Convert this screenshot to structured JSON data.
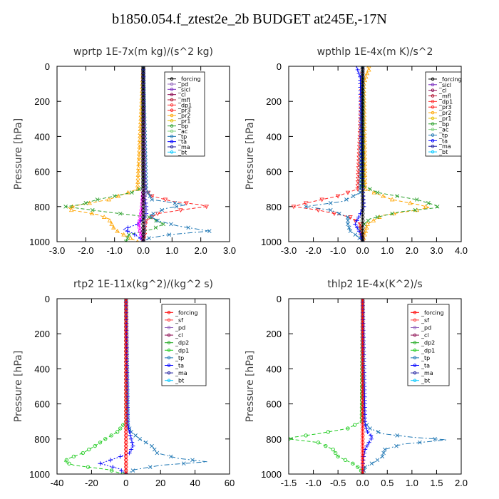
{
  "figure_title": "b1850.054.f_ztest2e_2b  BUDGET at245E,-17N",
  "chart_data": [
    {
      "type": "line",
      "title": "wprtp   1E-7x(m kg)/(s^2 kg)",
      "ylabel": "Pressure [hPa]",
      "xlim": [
        -3.0,
        3.0
      ],
      "ylim": [
        1000,
        0
      ],
      "xticks": [
        "-3.0",
        "-2.0",
        "-1.0",
        "0.0",
        "1.0",
        "2.0",
        "3.0"
      ],
      "yticks": [
        "0",
        "200",
        "400",
        "600",
        "800",
        "1000"
      ],
      "legend_entries": [
        "_forcing",
        "_pd",
        "_sicl",
        "_cl",
        "_mfl",
        "_dp1",
        "_pr3",
        "_pr2",
        "_pr1",
        "_bp",
        "_ac",
        "_tp",
        "_ta",
        "_ma",
        "_bt"
      ],
      "series": [
        {
          "name": "_forcing",
          "color": "#000000",
          "marker": "o",
          "dash": "solid",
          "p": [
            0,
            50,
            100,
            200,
            300,
            400,
            500,
            600,
            700,
            800,
            900,
            1000
          ],
          "x": [
            0,
            0,
            0,
            0,
            0,
            0,
            0,
            0,
            0,
            0,
            0,
            0
          ]
        },
        {
          "name": "_pr3",
          "color": "#ff2020",
          "marker": "v",
          "dash": "dashed",
          "p": [
            0,
            600,
            700,
            740,
            770,
            790,
            800,
            815,
            840,
            880,
            920,
            960,
            1000
          ],
          "x": [
            0,
            0,
            0.05,
            0.3,
            1.0,
            2.0,
            2.2,
            1.5,
            0.5,
            0.1,
            0.05,
            0.05,
            0
          ]
        },
        {
          "name": "_pr2",
          "color": "#ffa500",
          "marker": "^",
          "dash": "dashed",
          "p": [
            0,
            700,
            760,
            790,
            805,
            820,
            845,
            870,
            900,
            930,
            950,
            975,
            1000
          ],
          "x": [
            0,
            -0.2,
            -1.2,
            -2.2,
            -2.6,
            -2.5,
            -1.6,
            -1.2,
            -1.1,
            -1.0,
            -0.8,
            -0.5,
            -0.2
          ]
        },
        {
          "name": "_ac",
          "color": "#2ca02c",
          "marker": "x",
          "dash": "dashed",
          "p": [
            0,
            690,
            720,
            760,
            790,
            800,
            830,
            860,
            900,
            930,
            960,
            1000
          ],
          "x": [
            0,
            0,
            -0.4,
            -1.6,
            -2.2,
            -2.7,
            -1.3,
            0.2,
            0.7,
            0.3,
            -0.5,
            -0.6
          ]
        },
        {
          "name": "_tp",
          "color": "#1f77b4",
          "marker": "x",
          "dash": "dashdot",
          "p": [
            0,
            700,
            760,
            790,
            810,
            850,
            880,
            910,
            940,
            960,
            980,
            1000
          ],
          "x": [
            0,
            0.1,
            0.3,
            1.5,
            0.8,
            0.2,
            0.5,
            1.2,
            2.3,
            0.9,
            0.2,
            0
          ]
        },
        {
          "name": "_ta",
          "color": "#0000ff",
          "marker": "+",
          "dash": "dotted",
          "p": [
            0,
            750,
            800,
            850,
            900,
            930,
            950,
            980,
            1000
          ],
          "x": [
            0,
            0.05,
            0.1,
            0.1,
            -0.2,
            -0.7,
            -0.4,
            -0.1,
            0
          ]
        },
        {
          "name": "_dp1",
          "color": "#ff00ff",
          "marker": "o",
          "dash": "solid",
          "p": [
            0,
            700,
            800,
            860,
            900,
            950,
            1000
          ],
          "x": [
            0,
            0,
            -0.05,
            -0.1,
            -0.15,
            -0.1,
            0
          ]
        },
        {
          "name": "_pd",
          "color": "#9467bd",
          "marker": "o",
          "dash": "solid",
          "p": [
            0,
            800,
            900,
            1000
          ],
          "x": [
            0,
            0.05,
            0.05,
            0
          ]
        }
      ]
    },
    {
      "type": "line",
      "title": "wpthlp   1E-4x(m K)/s^2",
      "ylabel": "Pressure [hPa]",
      "xlim": [
        -3.0,
        4.0
      ],
      "ylim": [
        1000,
        0
      ],
      "xticks": [
        "-3.0",
        "-2.0",
        "-1.0",
        "0.0",
        "1.0",
        "2.0",
        "3.0",
        "4.0"
      ],
      "yticks": [
        "0",
        "200",
        "400",
        "600",
        "800",
        "1000"
      ],
      "legend_entries": [
        "_forcing",
        "_sicl",
        "_cl",
        "_mfl",
        "_dp1",
        "_pr3",
        "_pr2",
        "_pr1",
        "_bp",
        "_ac",
        "_tp",
        "_ta",
        "_ma",
        "_bt"
      ],
      "series": [
        {
          "name": "_forcing",
          "color": "#000000",
          "marker": "o",
          "dash": "solid",
          "p": [
            0,
            50,
            100,
            200,
            300,
            400,
            500,
            600,
            700,
            800,
            900,
            1000
          ],
          "x": [
            0,
            0,
            0,
            0,
            0,
            0,
            0,
            0,
            0,
            0,
            0,
            0
          ]
        },
        {
          "name": "_pr2",
          "color": "#ffa500",
          "marker": "^",
          "dash": "dashed",
          "p": [
            0,
            20,
            50,
            100,
            700,
            760,
            790,
            805,
            820,
            850,
            900,
            950,
            1000
          ],
          "x": [
            0.25,
            0.25,
            0.15,
            0.05,
            0.1,
            1.2,
            2.3,
            2.7,
            2.2,
            0.8,
            0.2,
            0.1,
            0
          ]
        },
        {
          "name": "_ac",
          "color": "#2ca02c",
          "marker": "x",
          "dash": "dashed",
          "p": [
            0,
            680,
            720,
            760,
            790,
            805,
            830,
            870,
            920,
            1000
          ],
          "x": [
            0,
            0,
            0.6,
            2.2,
            2.9,
            3.1,
            1.5,
            0.3,
            -0.1,
            0
          ]
        },
        {
          "name": "_pr3",
          "color": "#ff2020",
          "marker": "v",
          "dash": "dashed",
          "p": [
            0,
            700,
            740,
            780,
            800,
            820,
            860,
            900,
            1000
          ],
          "x": [
            0,
            -0.2,
            -1.0,
            -2.3,
            -2.8,
            -1.8,
            -0.5,
            -0.1,
            0
          ]
        },
        {
          "name": "_tp",
          "color": "#1f77b4",
          "marker": "x",
          "dash": "dashdot",
          "p": [
            0,
            720,
            770,
            800,
            820,
            860,
            900,
            940,
            970,
            1000
          ],
          "x": [
            0,
            -0.1,
            -0.8,
            -2.3,
            -1.3,
            -0.6,
            -0.6,
            -0.5,
            -0.2,
            0
          ]
        },
        {
          "name": "_ta",
          "color": "#0000ff",
          "marker": "+",
          "dash": "dotted",
          "p": [
            0,
            60,
            700,
            800,
            900,
            950,
            1000
          ],
          "x": [
            -0.25,
            -0.1,
            0,
            0.05,
            -0.3,
            -0.1,
            0
          ]
        }
      ]
    },
    {
      "type": "line",
      "title": "rtp2   1E-11x(kg^2)/(kg^2 s)",
      "ylabel": "Pressure [hPa]",
      "xlim": [
        -40,
        60
      ],
      "ylim": [
        1000,
        0
      ],
      "xticks": [
        "-40",
        "-20",
        "0",
        "20",
        "40",
        "60"
      ],
      "yticks": [
        "0",
        "200",
        "400",
        "600",
        "800",
        "1000"
      ],
      "legend_entries": [
        "_forcing",
        "_sf",
        "_pd",
        "_cl",
        "_dp2",
        "_dp1",
        "_tp",
        "_ta",
        "_ma",
        "_bt"
      ],
      "series": [
        {
          "name": "_forcing",
          "color": "#ff0000",
          "marker": "o",
          "dash": "solid",
          "p": [
            0,
            50,
            100,
            200,
            300,
            400,
            500,
            600,
            700,
            800,
            900,
            1000
          ],
          "x": [
            0,
            0,
            0,
            0,
            0,
            0,
            0,
            0,
            0,
            0,
            0,
            0
          ]
        },
        {
          "name": "_dp1",
          "color": "#22cc22",
          "marker": "o",
          "dash": "dashed",
          "p": [
            0,
            700,
            760,
            800,
            840,
            880,
            910,
            930,
            950,
            975,
            1000
          ],
          "x": [
            0,
            0,
            -5,
            -12,
            -18,
            -25,
            -33,
            -36,
            -30,
            -10,
            -2
          ]
        },
        {
          "name": "_tp",
          "color": "#1f77b4",
          "marker": "x",
          "dash": "dashdot",
          "p": [
            0,
            720,
            760,
            800,
            840,
            880,
            910,
            930,
            950,
            975,
            1000
          ],
          "x": [
            0,
            1,
            3,
            8,
            15,
            18,
            30,
            47,
            20,
            5,
            0
          ]
        },
        {
          "name": "_ta",
          "color": "#0000ff",
          "marker": "+",
          "dash": "dotted",
          "p": [
            0,
            720,
            760,
            800,
            840,
            880,
            910,
            940,
            970,
            1000
          ],
          "x": [
            0,
            1,
            2,
            3,
            4,
            2,
            -6,
            -15,
            -4,
            0
          ]
        }
      ]
    },
    {
      "type": "line",
      "title": "thlp2   1E-4x(K^2)/s",
      "ylabel": "Pressure [hPa]",
      "xlim": [
        -1.5,
        2.0
      ],
      "ylim": [
        1000,
        0
      ],
      "xticks": [
        "-1.5",
        "-1.0",
        "-0.5",
        "0.0",
        "0.5",
        "1.0",
        "1.5",
        "2.0"
      ],
      "yticks": [
        "0",
        "200",
        "400",
        "600",
        "800",
        "1000"
      ],
      "legend_entries": [
        "_forcing",
        "_sf",
        "_pd",
        "_cl",
        "_dp2",
        "_dp1",
        "_tp",
        "_ta",
        "_ma",
        "_bt"
      ],
      "series": [
        {
          "name": "_forcing",
          "color": "#ff0000",
          "marker": "o",
          "dash": "solid",
          "p": [
            0,
            50,
            100,
            200,
            300,
            400,
            500,
            600,
            700,
            800,
            900,
            1000
          ],
          "x": [
            0,
            0,
            0,
            0,
            0,
            0,
            0,
            0,
            0,
            0,
            0,
            0
          ]
        },
        {
          "name": "_dp1",
          "color": "#22cc22",
          "marker": "o",
          "dash": "dashed",
          "p": [
            0,
            700,
            740,
            770,
            790,
            800,
            820,
            860,
            900,
            940,
            970,
            1000
          ],
          "x": [
            0,
            -0.02,
            -0.3,
            -0.9,
            -1.4,
            -1.5,
            -0.9,
            -0.6,
            -0.5,
            -0.2,
            -0.05,
            0
          ]
        },
        {
          "name": "_tp",
          "color": "#1f77b4",
          "marker": "x",
          "dash": "dashdot",
          "p": [
            0,
            700,
            740,
            770,
            790,
            805,
            830,
            860,
            900,
            930,
            960,
            1000
          ],
          "x": [
            0,
            0.02,
            0.15,
            0.4,
            1.0,
            1.7,
            0.8,
            0.45,
            0.4,
            0.25,
            0.05,
            0
          ]
        },
        {
          "name": "_ta",
          "color": "#0000ff",
          "marker": "+",
          "dash": "dotted",
          "p": [
            0,
            720,
            760,
            790,
            810,
            860,
            900,
            950,
            1000
          ],
          "x": [
            0,
            0.05,
            0.1,
            0.2,
            0.15,
            0.05,
            0.02,
            0,
            0
          ]
        }
      ]
    }
  ]
}
